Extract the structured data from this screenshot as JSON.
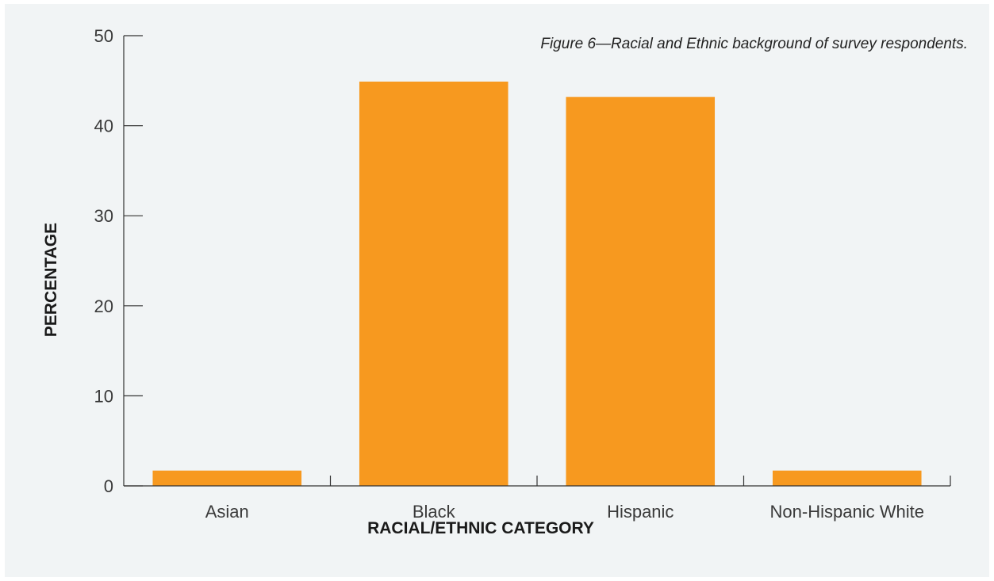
{
  "chart_data": {
    "type": "bar",
    "title": "Figure 6—Racial and Ethnic background of survey respondents.",
    "xlabel": "RACIAL/ETHNIC CATEGORY",
    "ylabel": "PERCENTAGE",
    "categories": [
      "Asian",
      "Black",
      "Hispanic",
      "Non-Hispanic White"
    ],
    "values": [
      1.7,
      44.9,
      43.2,
      1.7
    ],
    "ylim": [
      0,
      50
    ],
    "yticks": [
      "0",
      "10",
      "20",
      "30",
      "40",
      "50"
    ],
    "grid": false,
    "bar_color": "#f7991f",
    "axis_color": "#333333"
  }
}
